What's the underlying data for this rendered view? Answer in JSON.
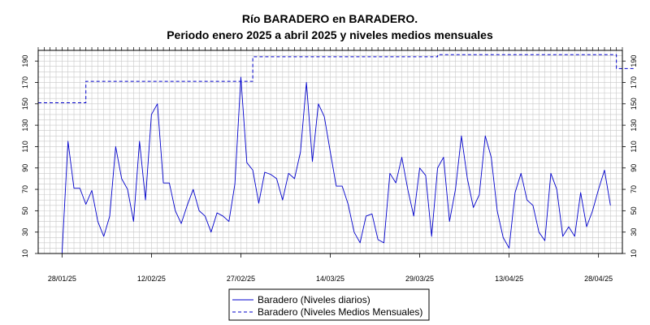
{
  "chart_data": {
    "type": "line",
    "title": "Río BARADERO en BARADERO.",
    "subtitle": "Periodo enero 2025 a abril 2025 y niveles medios mensuales",
    "xlabel": "",
    "ylabel": "",
    "x_start": "2025-01-28",
    "x_end": "2025-04-30",
    "xlim": [
      "2025-01-24",
      "2025-05-02"
    ],
    "ylim": [
      10,
      200
    ],
    "y_ticks": [
      10,
      30,
      50,
      70,
      90,
      110,
      130,
      150,
      170,
      190
    ],
    "x_ticks": [
      {
        "date": "2025-01-28",
        "label": "28/01/25"
      },
      {
        "date": "2025-02-12",
        "label": "12/02/25"
      },
      {
        "date": "2025-02-27",
        "label": "27/02/25"
      },
      {
        "date": "2025-03-14",
        "label": "14/03/25"
      },
      {
        "date": "2025-03-29",
        "label": "29/03/25"
      },
      {
        "date": "2025-04-13",
        "label": "13/04/25"
      },
      {
        "date": "2025-04-28",
        "label": "28/04/25"
      }
    ],
    "grid": true,
    "legend_position": "bottom-center",
    "series": [
      {
        "name": "Baradero (Niveles diarios)",
        "style": "solid",
        "color": "#0000cc",
        "values": [
          10,
          115,
          71,
          71,
          56,
          69,
          40,
          26,
          45,
          110,
          80,
          70,
          40,
          115,
          60,
          140,
          150,
          76,
          76,
          50,
          38,
          55,
          70,
          50,
          45,
          30,
          48,
          45,
          40,
          75,
          175,
          95,
          88,
          57,
          86,
          84,
          80,
          60,
          85,
          80,
          105,
          170,
          96,
          150,
          138,
          105,
          73,
          73,
          56,
          30,
          20,
          45,
          47,
          23,
          20,
          85,
          76,
          100,
          70,
          45,
          90,
          83,
          26,
          90,
          100,
          40,
          70,
          120,
          80,
          53,
          65,
          120,
          100,
          50,
          25,
          15,
          67,
          85,
          60,
          55,
          30,
          22,
          85,
          70,
          26,
          35,
          26,
          67,
          35,
          50,
          70,
          88,
          55
        ]
      },
      {
        "name": "Baradero (Niveles Medios Mensuales)",
        "style": "dashed",
        "color": "#0000cc",
        "steps": [
          {
            "from": "2025-01-24",
            "to": "2025-02-01",
            "value": 151
          },
          {
            "from": "2025-02-01",
            "to": "2025-03-01",
            "value": 171
          },
          {
            "from": "2025-03-01",
            "to": "2025-04-01",
            "value": 194
          },
          {
            "from": "2025-04-01",
            "to": "2025-05-01",
            "value": 196
          },
          {
            "from": "2025-05-01",
            "to": "2025-05-04",
            "value": 183
          }
        ]
      }
    ]
  }
}
